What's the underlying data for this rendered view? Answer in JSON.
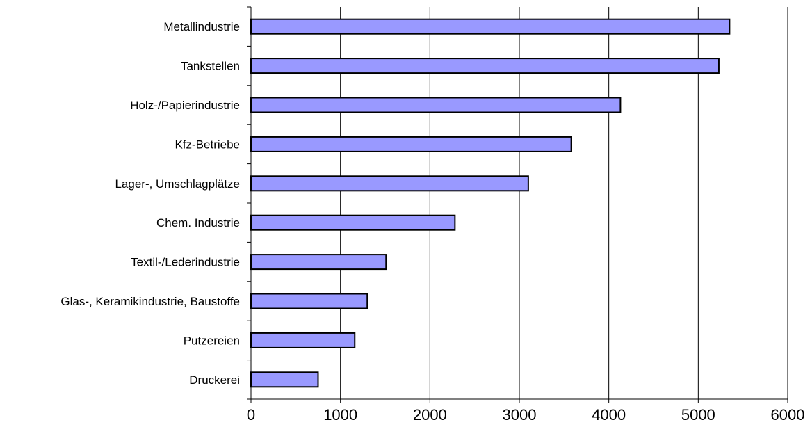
{
  "chart_data": {
    "type": "bar",
    "orientation": "horizontal",
    "categories": [
      "Metallindustrie",
      "Tankstellen",
      "Holz-/Papierindustrie",
      "Kfz-Betriebe",
      "Lager-, Umschlagplätze",
      "Chem. Industrie",
      "Textil-/Lederindustrie",
      "Glas-, Keramikindustrie, Baustoffe",
      "Putzereien",
      "Druckerei"
    ],
    "values": [
      5350,
      5230,
      4130,
      3580,
      3100,
      2280,
      1510,
      1300,
      1160,
      750
    ],
    "xlim": [
      0,
      6000
    ],
    "xticks": [
      "0",
      "1000",
      "2000",
      "3000",
      "4000",
      "5000",
      "6000"
    ],
    "grid": "vertical",
    "title": "",
    "xlabel": "",
    "ylabel": "",
    "colors": {
      "bar_fill": "#9999ff",
      "bar_stroke": "#000000",
      "grid": "#000000"
    }
  }
}
